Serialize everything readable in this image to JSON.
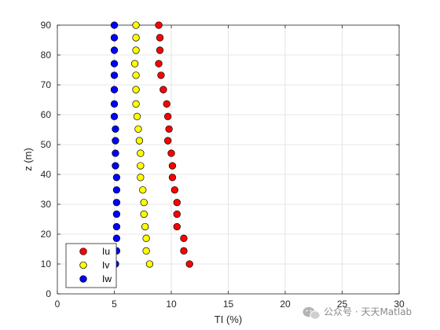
{
  "chart_data": {
    "type": "scatter",
    "xlabel": "TI (%)",
    "ylabel": "z (m)",
    "xlim": [
      0,
      30
    ],
    "ylim": [
      0,
      90
    ],
    "xticks": [
      0,
      5,
      10,
      15,
      20,
      25,
      30
    ],
    "yticks": [
      0,
      10,
      20,
      30,
      40,
      50,
      60,
      70,
      80,
      90
    ],
    "grid": true,
    "legend_position": "bottom-left",
    "series": [
      {
        "name": "Iu",
        "color": "#ff0000",
        "points": [
          [
            11.6,
            10
          ],
          [
            11.1,
            14.4
          ],
          [
            11.1,
            18.6
          ],
          [
            10.5,
            22.5
          ],
          [
            10.5,
            26.7
          ],
          [
            10.5,
            30.6
          ],
          [
            10.3,
            34.8
          ],
          [
            10.1,
            39.0
          ],
          [
            10.1,
            42.9
          ],
          [
            10.0,
            47.1
          ],
          [
            9.7,
            51.3
          ],
          [
            9.8,
            55.2
          ],
          [
            9.7,
            59.4
          ],
          [
            9.6,
            63.6
          ],
          [
            9.3,
            68.4
          ],
          [
            9.1,
            73.2
          ],
          [
            8.9,
            77.1
          ],
          [
            9.0,
            81.6
          ],
          [
            9.0,
            85.8
          ],
          [
            8.9,
            90
          ]
        ]
      },
      {
        "name": "Iv",
        "color": "#ffff00",
        "points": [
          [
            8.1,
            10
          ],
          [
            7.8,
            14.4
          ],
          [
            7.8,
            18.6
          ],
          [
            7.7,
            22.5
          ],
          [
            7.6,
            26.7
          ],
          [
            7.6,
            30.6
          ],
          [
            7.5,
            34.8
          ],
          [
            7.3,
            39.0
          ],
          [
            7.3,
            42.9
          ],
          [
            7.3,
            47.1
          ],
          [
            7.2,
            51.3
          ],
          [
            7.1,
            55.2
          ],
          [
            7.0,
            59.4
          ],
          [
            6.9,
            63.6
          ],
          [
            6.9,
            68.4
          ],
          [
            6.9,
            73.2
          ],
          [
            6.8,
            77.1
          ],
          [
            6.9,
            81.6
          ],
          [
            6.9,
            85.8
          ],
          [
            6.9,
            90
          ]
        ]
      },
      {
        "name": "Iw",
        "color": "#0000ff",
        "points": [
          [
            5.1,
            10
          ],
          [
            5.2,
            14.4
          ],
          [
            5.2,
            18.6
          ],
          [
            5.2,
            22.5
          ],
          [
            5.2,
            26.7
          ],
          [
            5.2,
            30.6
          ],
          [
            5.2,
            34.8
          ],
          [
            5.2,
            39.0
          ],
          [
            5.1,
            42.9
          ],
          [
            5.1,
            47.1
          ],
          [
            5.1,
            51.3
          ],
          [
            5.1,
            55.2
          ],
          [
            5.0,
            59.4
          ],
          [
            5.0,
            63.6
          ],
          [
            5.0,
            68.4
          ],
          [
            5.0,
            73.2
          ],
          [
            5.0,
            77.1
          ],
          [
            5.0,
            81.6
          ],
          [
            5.0,
            85.8
          ],
          [
            5.0,
            90
          ]
        ]
      }
    ]
  },
  "watermark": {
    "text": "公众号 · 天天Matlab",
    "icon": "wechat-icon"
  }
}
